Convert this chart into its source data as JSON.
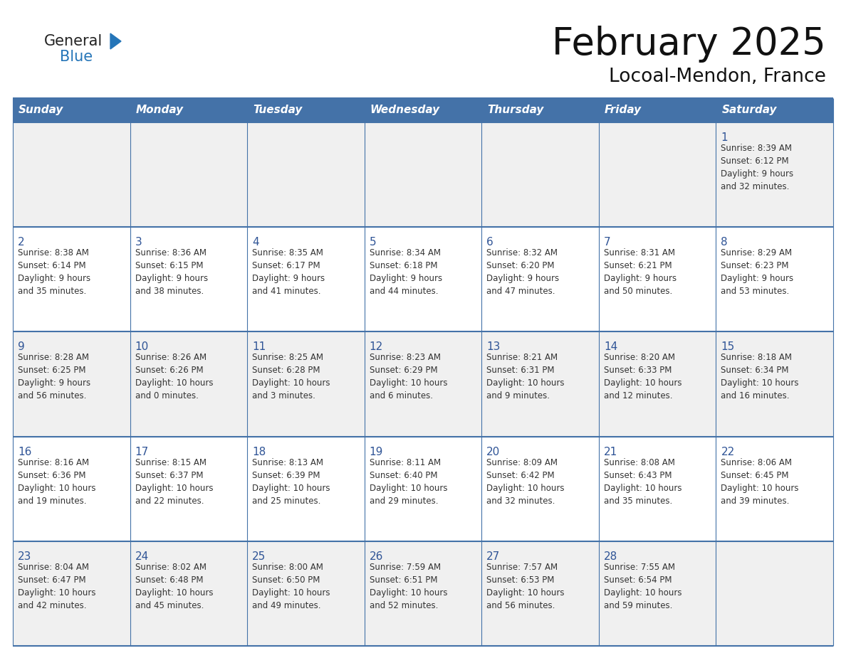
{
  "title": "February 2025",
  "subtitle": "Locoal-Mendon, France",
  "header_bg": "#4472a8",
  "header_text_color": "#ffffff",
  "days_of_week": [
    "Sunday",
    "Monday",
    "Tuesday",
    "Wednesday",
    "Thursday",
    "Friday",
    "Saturday"
  ],
  "row_bg_odd": "#f0f0f0",
  "row_bg_even": "#ffffff",
  "cell_border_color": "#4472a8",
  "day_number_color": "#2f5496",
  "info_text_color": "#333333",
  "logo_general_color": "#222222",
  "logo_blue_color": "#2575b8",
  "calendar_data": [
    [
      {
        "day": "",
        "info": ""
      },
      {
        "day": "",
        "info": ""
      },
      {
        "day": "",
        "info": ""
      },
      {
        "day": "",
        "info": ""
      },
      {
        "day": "",
        "info": ""
      },
      {
        "day": "",
        "info": ""
      },
      {
        "day": "1",
        "info": "Sunrise: 8:39 AM\nSunset: 6:12 PM\nDaylight: 9 hours\nand 32 minutes."
      }
    ],
    [
      {
        "day": "2",
        "info": "Sunrise: 8:38 AM\nSunset: 6:14 PM\nDaylight: 9 hours\nand 35 minutes."
      },
      {
        "day": "3",
        "info": "Sunrise: 8:36 AM\nSunset: 6:15 PM\nDaylight: 9 hours\nand 38 minutes."
      },
      {
        "day": "4",
        "info": "Sunrise: 8:35 AM\nSunset: 6:17 PM\nDaylight: 9 hours\nand 41 minutes."
      },
      {
        "day": "5",
        "info": "Sunrise: 8:34 AM\nSunset: 6:18 PM\nDaylight: 9 hours\nand 44 minutes."
      },
      {
        "day": "6",
        "info": "Sunrise: 8:32 AM\nSunset: 6:20 PM\nDaylight: 9 hours\nand 47 minutes."
      },
      {
        "day": "7",
        "info": "Sunrise: 8:31 AM\nSunset: 6:21 PM\nDaylight: 9 hours\nand 50 minutes."
      },
      {
        "day": "8",
        "info": "Sunrise: 8:29 AM\nSunset: 6:23 PM\nDaylight: 9 hours\nand 53 minutes."
      }
    ],
    [
      {
        "day": "9",
        "info": "Sunrise: 8:28 AM\nSunset: 6:25 PM\nDaylight: 9 hours\nand 56 minutes."
      },
      {
        "day": "10",
        "info": "Sunrise: 8:26 AM\nSunset: 6:26 PM\nDaylight: 10 hours\nand 0 minutes."
      },
      {
        "day": "11",
        "info": "Sunrise: 8:25 AM\nSunset: 6:28 PM\nDaylight: 10 hours\nand 3 minutes."
      },
      {
        "day": "12",
        "info": "Sunrise: 8:23 AM\nSunset: 6:29 PM\nDaylight: 10 hours\nand 6 minutes."
      },
      {
        "day": "13",
        "info": "Sunrise: 8:21 AM\nSunset: 6:31 PM\nDaylight: 10 hours\nand 9 minutes."
      },
      {
        "day": "14",
        "info": "Sunrise: 8:20 AM\nSunset: 6:33 PM\nDaylight: 10 hours\nand 12 minutes."
      },
      {
        "day": "15",
        "info": "Sunrise: 8:18 AM\nSunset: 6:34 PM\nDaylight: 10 hours\nand 16 minutes."
      }
    ],
    [
      {
        "day": "16",
        "info": "Sunrise: 8:16 AM\nSunset: 6:36 PM\nDaylight: 10 hours\nand 19 minutes."
      },
      {
        "day": "17",
        "info": "Sunrise: 8:15 AM\nSunset: 6:37 PM\nDaylight: 10 hours\nand 22 minutes."
      },
      {
        "day": "18",
        "info": "Sunrise: 8:13 AM\nSunset: 6:39 PM\nDaylight: 10 hours\nand 25 minutes."
      },
      {
        "day": "19",
        "info": "Sunrise: 8:11 AM\nSunset: 6:40 PM\nDaylight: 10 hours\nand 29 minutes."
      },
      {
        "day": "20",
        "info": "Sunrise: 8:09 AM\nSunset: 6:42 PM\nDaylight: 10 hours\nand 32 minutes."
      },
      {
        "day": "21",
        "info": "Sunrise: 8:08 AM\nSunset: 6:43 PM\nDaylight: 10 hours\nand 35 minutes."
      },
      {
        "day": "22",
        "info": "Sunrise: 8:06 AM\nSunset: 6:45 PM\nDaylight: 10 hours\nand 39 minutes."
      }
    ],
    [
      {
        "day": "23",
        "info": "Sunrise: 8:04 AM\nSunset: 6:47 PM\nDaylight: 10 hours\nand 42 minutes."
      },
      {
        "day": "24",
        "info": "Sunrise: 8:02 AM\nSunset: 6:48 PM\nDaylight: 10 hours\nand 45 minutes."
      },
      {
        "day": "25",
        "info": "Sunrise: 8:00 AM\nSunset: 6:50 PM\nDaylight: 10 hours\nand 49 minutes."
      },
      {
        "day": "26",
        "info": "Sunrise: 7:59 AM\nSunset: 6:51 PM\nDaylight: 10 hours\nand 52 minutes."
      },
      {
        "day": "27",
        "info": "Sunrise: 7:57 AM\nSunset: 6:53 PM\nDaylight: 10 hours\nand 56 minutes."
      },
      {
        "day": "28",
        "info": "Sunrise: 7:55 AM\nSunset: 6:54 PM\nDaylight: 10 hours\nand 59 minutes."
      },
      {
        "day": "",
        "info": ""
      }
    ]
  ]
}
